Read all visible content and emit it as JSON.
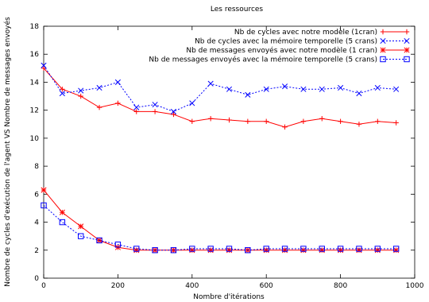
{
  "chart_data": {
    "type": "line",
    "title": "Les ressources",
    "xlabel": "Nombre d'itérations",
    "ylabel": "Nombre de cycles d'exécution de l'agent VS Nombre de messages envoyés",
    "xlim": [
      0,
      1000
    ],
    "ylim": [
      0,
      18
    ],
    "xticks": [
      0,
      200,
      400,
      600,
      800,
      1000
    ],
    "yticks": [
      0,
      2,
      4,
      6,
      8,
      10,
      12,
      14,
      16,
      18
    ],
    "grid": false,
    "legend_position": "top-right",
    "x": [
      0,
      50,
      100,
      150,
      200,
      250,
      300,
      350,
      400,
      450,
      500,
      550,
      600,
      650,
      700,
      750,
      800,
      850,
      900,
      950
    ],
    "series": [
      {
        "name": "Nb de cycles avec notre modèle (1cran)",
        "color": "#ff0000",
        "marker": "plus",
        "dash": "solid",
        "values": [
          15.0,
          13.5,
          13.0,
          12.2,
          12.5,
          11.9,
          11.9,
          11.7,
          11.2,
          11.4,
          11.3,
          11.2,
          11.2,
          10.8,
          11.2,
          11.4,
          11.2,
          11.0,
          11.2,
          11.1
        ]
      },
      {
        "name": "Nb de cycles avec la mémoire temporelle (5 crans)",
        "color": "#0000ff",
        "marker": "cross",
        "dash": "dashed",
        "values": [
          15.2,
          13.2,
          13.4,
          13.6,
          14.0,
          12.2,
          12.4,
          11.9,
          12.5,
          13.9,
          13.5,
          13.1,
          13.5,
          13.7,
          13.5,
          13.5,
          13.6,
          13.2,
          13.6,
          13.5
        ]
      },
      {
        "name": "Nb de messages envoyés avec notre modèle (1 cran)",
        "color": "#ff0000",
        "marker": "star",
        "dash": "solid",
        "values": [
          6.3,
          4.7,
          3.7,
          2.7,
          2.2,
          2.0,
          2.0,
          2.0,
          2.0,
          2.0,
          2.0,
          2.0,
          2.0,
          2.0,
          2.0,
          2.0,
          2.0,
          2.0,
          2.0,
          2.0
        ]
      },
      {
        "name": "Nb de messages envoyés avec la mémoire temporelle (5 crans)",
        "color": "#0000ff",
        "marker": "square",
        "dash": "dashed",
        "values": [
          5.2,
          4.0,
          3.0,
          2.7,
          2.4,
          2.1,
          2.0,
          2.0,
          2.1,
          2.1,
          2.1,
          2.0,
          2.1,
          2.1,
          2.1,
          2.1,
          2.1,
          2.1,
          2.1,
          2.1
        ]
      }
    ]
  }
}
